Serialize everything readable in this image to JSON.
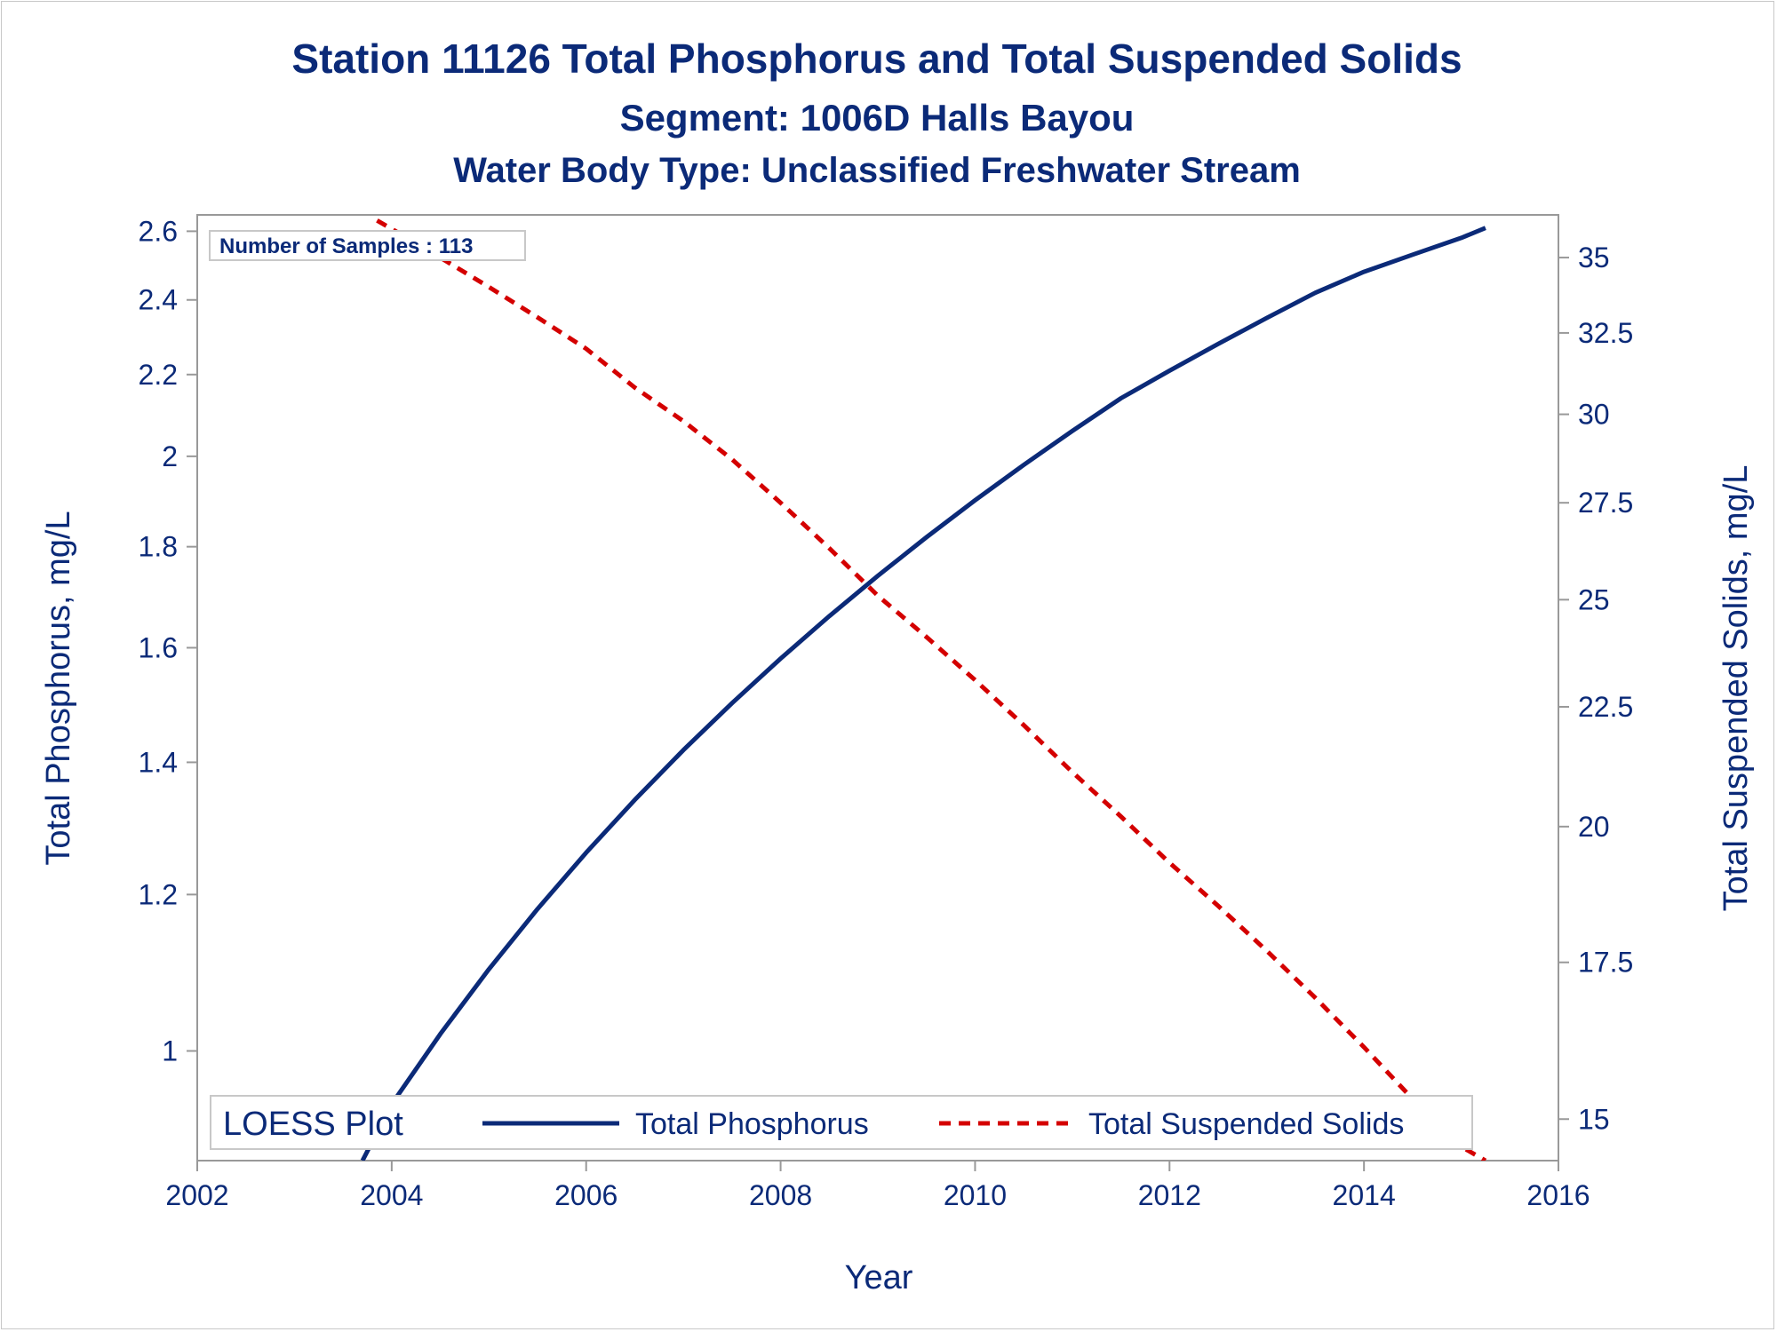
{
  "titles": {
    "line1": "Station 11126  Total Phosphorus and Total Suspended Solids",
    "line2": "Segment: 1006D  Halls Bayou",
    "line3": "Water Body Type: Unclassified Freshwater Stream"
  },
  "inset": {
    "label": "Number of Samples : 113"
  },
  "legend": {
    "title": "LOESS Plot",
    "items": [
      {
        "label": "Total Phosphorus",
        "color": "#0b2a78",
        "style": "solid"
      },
      {
        "label": "Total Suspended Solids",
        "color": "#d40000",
        "style": "dashed"
      }
    ]
  },
  "colors": {
    "text": "#0b2a78",
    "axis": "#999999",
    "tp_line": "#0b2a78",
    "tss_line": "#d40000"
  },
  "chart_data": {
    "type": "line",
    "xlabel": "Year",
    "ylabel": "Total Phosphorus, mg/L",
    "y2label": "Total Suspended Solids, mg/L",
    "xlim": [
      2002,
      2016
    ],
    "x_ticks": [
      2002,
      2004,
      2006,
      2008,
      2010,
      2012,
      2014,
      2016
    ],
    "ylim": [
      0.88,
      2.65
    ],
    "y_scale": "log",
    "y_ticks": [
      1,
      1.2,
      1.4,
      1.6,
      1.8,
      2,
      2.2,
      2.4,
      2.6
    ],
    "y2lim": [
      14.4,
      36.5
    ],
    "y2_scale": "log",
    "y2_ticks": [
      15,
      17.5,
      20,
      22.5,
      25,
      27.5,
      30,
      32.5,
      35
    ],
    "grid": false,
    "legend_position": "bottom-inside",
    "series": [
      {
        "name": "Total Phosphorus",
        "axis": "left",
        "x": [
          2003.7,
          2004.0,
          2004.5,
          2005.0,
          2005.5,
          2006.0,
          2006.5,
          2007.0,
          2007.5,
          2008.0,
          2008.5,
          2009.0,
          2009.5,
          2010.0,
          2010.5,
          2011.0,
          2011.5,
          2012.0,
          2012.5,
          2013.0,
          2013.5,
          2014.0,
          2014.5,
          2015.0,
          2015.25
        ],
        "values": [
          0.88,
          0.94,
          1.02,
          1.1,
          1.18,
          1.26,
          1.34,
          1.42,
          1.5,
          1.58,
          1.66,
          1.74,
          1.82,
          1.9,
          1.98,
          2.06,
          2.14,
          2.21,
          2.28,
          2.35,
          2.42,
          2.48,
          2.53,
          2.58,
          2.61
        ]
      },
      {
        "name": "Total Suspended Solids",
        "axis": "right",
        "x": [
          2003.85,
          2004.0,
          2004.5,
          2005.0,
          2005.5,
          2006.0,
          2006.5,
          2007.0,
          2007.5,
          2008.0,
          2008.5,
          2009.0,
          2009.5,
          2010.0,
          2010.5,
          2011.0,
          2011.5,
          2012.0,
          2012.5,
          2013.0,
          2013.5,
          2014.0,
          2014.5,
          2015.0,
          2015.25
        ],
        "values": [
          36.3,
          36.0,
          35.0,
          34.0,
          33.0,
          32.0,
          30.8,
          29.8,
          28.7,
          27.5,
          26.3,
          25.1,
          24.1,
          23.1,
          22.1,
          21.1,
          20.2,
          19.3,
          18.5,
          17.7,
          16.9,
          16.1,
          15.3,
          14.6,
          14.4
        ]
      }
    ]
  }
}
